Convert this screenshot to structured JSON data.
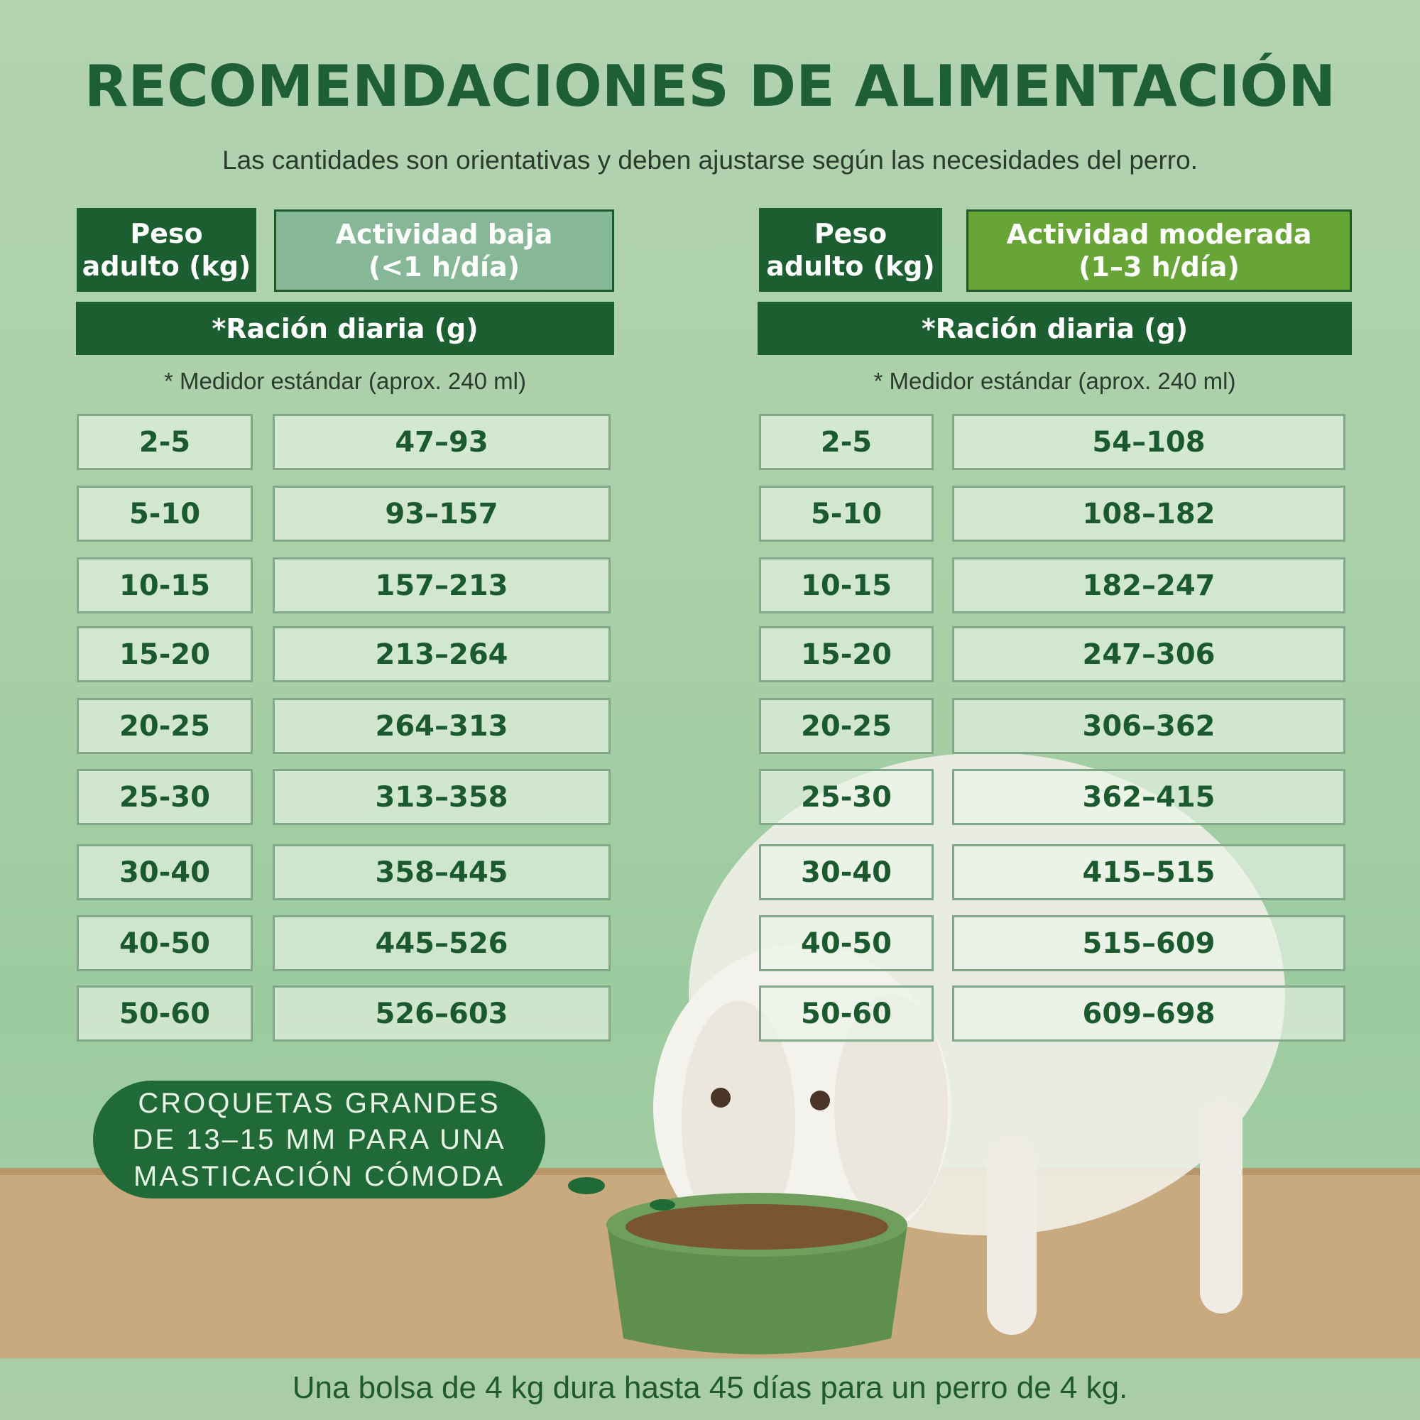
{
  "header": {
    "title": "RECOMENDACIONES DE ALIMENTACIÓN",
    "subtitle": "Las cantidades son orientativas y deben ajustarse según las necesidades del perro."
  },
  "tables": [
    {
      "weight_header": [
        "Peso",
        "adulto (kg)"
      ],
      "activity_header": [
        "Actividad baja",
        "(<1 h/día)"
      ],
      "ration_header": "*Ración diaria (g)",
      "note": "* Medidor estándar (aprox. 240 ml)",
      "rows": [
        [
          "2-5",
          "47–93"
        ],
        [
          "5-10",
          "93–157"
        ],
        [
          "10-15",
          "157–213"
        ],
        [
          "15-20",
          "213–264"
        ],
        [
          "20-25",
          "264–313"
        ],
        [
          "25-30",
          "313–358"
        ],
        [
          "30-40",
          "358–445"
        ],
        [
          "40-50",
          "445–526"
        ],
        [
          "50-60",
          "526–603"
        ]
      ]
    },
    {
      "weight_header": [
        "Peso",
        "adulto (kg)"
      ],
      "activity_header": [
        "Actividad moderada",
        "(1–3 h/día)"
      ],
      "ration_header": "*Ración diaria (g)",
      "note": "* Medidor estándar (aprox. 240 ml)",
      "rows": [
        [
          "2-5",
          "54–108"
        ],
        [
          "5-10",
          "108–182"
        ],
        [
          "10-15",
          "182–247"
        ],
        [
          "15-20",
          "247–306"
        ],
        [
          "20-25",
          "306–362"
        ],
        [
          "25-30",
          "362–415"
        ],
        [
          "30-40",
          "415–515"
        ],
        [
          "40-50",
          "515–609"
        ],
        [
          "50-60",
          "609–698"
        ]
      ]
    }
  ],
  "callout": [
    "CROQUETAS GRANDES",
    "DE 13–15 MM PARA UNA",
    "MASTICACIÓN CÓMODA"
  ],
  "footer": "Una bolsa de 4 kg dura hasta 45 días para un perro de 4 kg."
}
